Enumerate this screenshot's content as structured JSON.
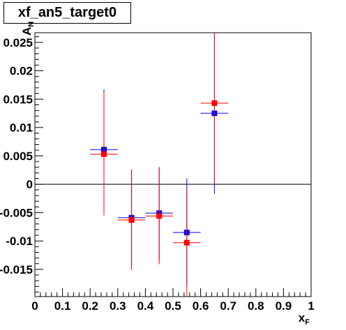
{
  "chart_data": {
    "type": "scatter",
    "title": "xf_an5_target0",
    "xlabel": "x",
    "xlabel_sub": "F",
    "ylabel": "A",
    "ylabel_sub": "N",
    "xlim": [
      0,
      1
    ],
    "ylim": [
      -0.0198,
      0.0267
    ],
    "x_ticks": [
      0,
      0.1,
      0.2,
      0.3,
      0.4,
      0.5,
      0.6,
      0.7,
      0.8,
      0.9,
      1
    ],
    "x_tick_labels": [
      "0",
      "0.1",
      "0.2",
      "0.3",
      "0.4",
      "0.5",
      "0.6",
      "0.7",
      "0.8",
      "0.9",
      "1"
    ],
    "y_ticks": [
      -0.015,
      -0.01,
      -0.005,
      0,
      0.005,
      0.01,
      0.015,
      0.02,
      0.025
    ],
    "y_tick_labels": [
      "-0.015",
      "-0.01",
      "-0.005",
      "0",
      "0.005",
      "0.01",
      "0.015",
      "0.02",
      "0.025"
    ],
    "grid": false,
    "zero_line": true,
    "series": [
      {
        "color": "#0000ff",
        "marker": "square",
        "points": [
          {
            "x": 0.25,
            "y": 0.0061,
            "xerr": 0.05,
            "yerr": 0.0106
          },
          {
            "x": 0.35,
            "y": -0.0059,
            "xerr": 0.05,
            "yerr": 0.0085
          },
          {
            "x": 0.45,
            "y": -0.0051,
            "xerr": 0.05,
            "yerr": 0.0081
          },
          {
            "x": 0.55,
            "y": -0.0085,
            "xerr": 0.05,
            "yerr": 0.0095
          },
          {
            "x": 0.65,
            "y": 0.0125,
            "xerr": 0.05,
            "yerr": 0.0142
          }
        ]
      },
      {
        "color": "#ff0000",
        "marker": "square",
        "points": [
          {
            "x": 0.25,
            "y": 0.0053,
            "xerr": 0.05,
            "yerr": 0.0108
          },
          {
            "x": 0.35,
            "y": -0.0063,
            "xerr": 0.05,
            "yerr": 0.0088
          },
          {
            "x": 0.45,
            "y": -0.0056,
            "xerr": 0.05,
            "yerr": 0.0085
          },
          {
            "x": 0.55,
            "y": -0.0103,
            "xerr": 0.05,
            "yerr": 0.0095
          },
          {
            "x": 0.65,
            "y": 0.0143,
            "xerr": 0.05,
            "yerr": 0.0142
          }
        ]
      }
    ]
  }
}
